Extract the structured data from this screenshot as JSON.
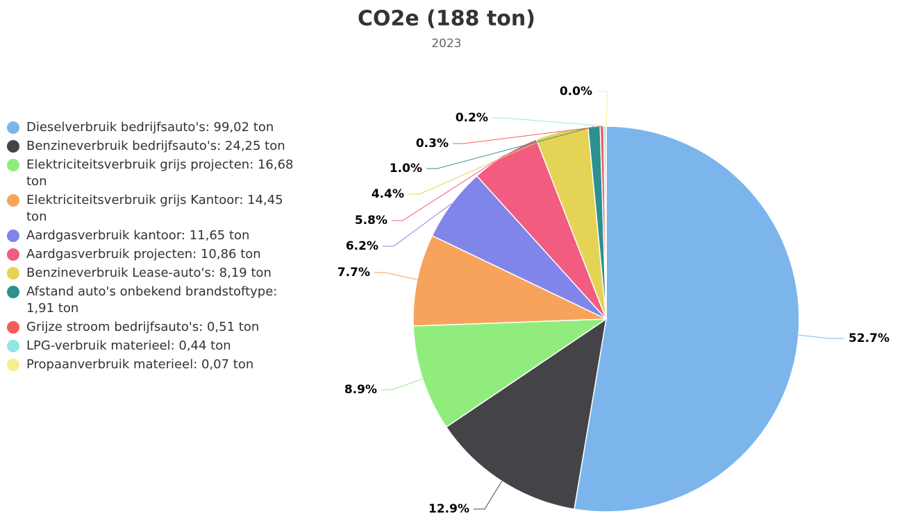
{
  "chart_data": {
    "type": "pie",
    "title": "CO2e (188 ton)",
    "subtitle": "2023",
    "categories": [
      "Dieselverbruik bedrijfsauto's: 99,02 ton",
      "Benzineverbruik bedrijfsauto's: 24,25 ton",
      "Elektriciteitsverbruik grijs projecten: 16,68 ton",
      "Elektriciteitsverbruik grijs Kantoor: 14,45 ton",
      "Aardgasverbruik kantoor: 11,65 ton",
      "Aardgasverbruik projecten: 10,86 ton",
      "Benzineverbruik Lease-auto's: 8,19 ton",
      "Afstand auto's onbekend brandstoftype: 1,91 ton",
      "Grijze stroom bedrijfsauto's: 0,51 ton",
      "LPG-verbruik materieel: 0,44 ton",
      "Propaanverbruik materieel: 0,07 ton"
    ],
    "values": [
      52.7,
      12.9,
      8.9,
      7.7,
      6.2,
      5.8,
      4.4,
      1.0,
      0.3,
      0.2,
      0.0
    ],
    "value_labels": [
      "52.7%",
      "12.9%",
      "8.9%",
      "7.7%",
      "6.2%",
      "5.8%",
      "4.4%",
      "1.0%",
      "0.3%",
      "0.2%",
      "0.0%"
    ],
    "colors": [
      "#7cb5ec",
      "#434348",
      "#90ed7d",
      "#f7a35c",
      "#8085e9",
      "#f15c80",
      "#e4d354",
      "#2b908f",
      "#f45b5b",
      "#91e8e1",
      "#f7ee8f"
    ],
    "legend": "left"
  }
}
